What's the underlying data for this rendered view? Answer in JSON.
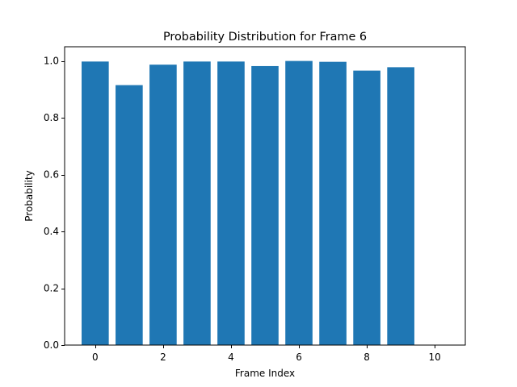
{
  "chart_data": {
    "type": "bar",
    "title": "Probability Distribution for Frame 6",
    "xlabel": "Frame Index",
    "ylabel": "Probability",
    "x": [
      0,
      1,
      2,
      3,
      4,
      5,
      6,
      7,
      8,
      9
    ],
    "values": [
      0.998,
      0.915,
      0.987,
      0.998,
      0.998,
      0.982,
      1.0,
      0.997,
      0.966,
      0.978
    ],
    "xlim": [
      -0.9,
      10.9
    ],
    "ylim": [
      0,
      1.05
    ],
    "xticks": [
      0,
      2,
      4,
      6,
      8,
      10
    ],
    "xtick_labels": [
      "0",
      "2",
      "4",
      "6",
      "8",
      "10"
    ],
    "yticks": [
      0,
      0.2,
      0.4,
      0.6,
      0.8,
      1.0
    ],
    "ytick_labels": [
      "0.0",
      "0.2",
      "0.4",
      "0.6",
      "0.8",
      "1.0"
    ],
    "bar_color": "#1f77b4",
    "grid": false,
    "legend": "none"
  }
}
